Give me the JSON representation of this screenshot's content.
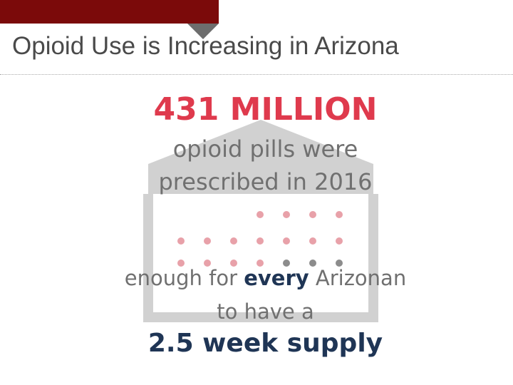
{
  "slide": {
    "title": "Opioid Use is Increasing in Arizona"
  },
  "infographic": {
    "headline": "431 MILLION",
    "line1": "opioid pills were",
    "line2": "prescribed in 2016",
    "line3_before": "enough for ",
    "line3_emphasis": "every",
    "line3_after": " Arizonan",
    "line4": "to have a",
    "supply": "2.5 week supply",
    "pill_dots": {
      "rows": [
        4,
        7,
        7
      ],
      "pink_count": 15,
      "gray_count": 3
    }
  },
  "colors": {
    "header_bar": "#7b0a0a",
    "headline_red": "#df3a4d",
    "navy": "#1f3555",
    "body_gray": "#707070",
    "house_gray": "#d1d1d1",
    "pill_pink": "#e8a1a9",
    "pill_gray": "#8c8c8c"
  }
}
